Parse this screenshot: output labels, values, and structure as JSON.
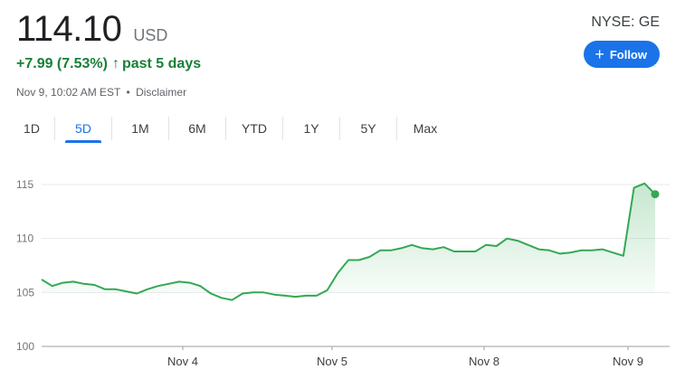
{
  "quote": {
    "price": "114.10",
    "currency": "USD",
    "change": "+7.99 (7.53%)",
    "change_arrow": "↑",
    "period": "past 5 days",
    "timestamp": "Nov 9, 10:02 AM EST",
    "separator": "•",
    "disclaimer": "Disclaimer",
    "ticker": "NYSE: GE",
    "follow_label": "Follow",
    "follow_icon": "+"
  },
  "tabs": [
    {
      "label": "1D",
      "active": false
    },
    {
      "label": "5D",
      "active": true
    },
    {
      "label": "1M",
      "active": false
    },
    {
      "label": "6M",
      "active": false
    },
    {
      "label": "YTD",
      "active": false
    },
    {
      "label": "1Y",
      "active": false
    },
    {
      "label": "5Y",
      "active": false
    },
    {
      "label": "Max",
      "active": false
    }
  ],
  "colors": {
    "line": "#34a853",
    "change": "#188038",
    "accent": "#1a73e8"
  },
  "chart_data": {
    "type": "line",
    "y_ticks": [
      "115",
      "110",
      "105",
      "100"
    ],
    "x_ticks": [
      "Nov 4",
      "Nov 5",
      "Nov 8",
      "Nov 9"
    ],
    "ylim": [
      100,
      116.5
    ],
    "grid": true,
    "series": [
      {
        "values": [
          106.2,
          105.6,
          105.9,
          106.0,
          105.8,
          105.7,
          105.3,
          105.3,
          105.1,
          104.9,
          105.3,
          105.6,
          105.8,
          106.0,
          105.9,
          105.6,
          104.9,
          104.5,
          104.3,
          104.9,
          105.0,
          105.0,
          104.8,
          104.7,
          104.6,
          104.7,
          104.7,
          105.2,
          106.8,
          108.0,
          108.0,
          108.3,
          108.9,
          108.9,
          109.1,
          109.4,
          109.1,
          109.0,
          109.2,
          108.8,
          108.8,
          108.8,
          109.4,
          109.3,
          110.0,
          109.8,
          109.4,
          109.0,
          108.9,
          108.6,
          108.7,
          108.9,
          108.9,
          109.0,
          108.7,
          108.4,
          114.7,
          115.1,
          114.1
        ]
      }
    ]
  }
}
